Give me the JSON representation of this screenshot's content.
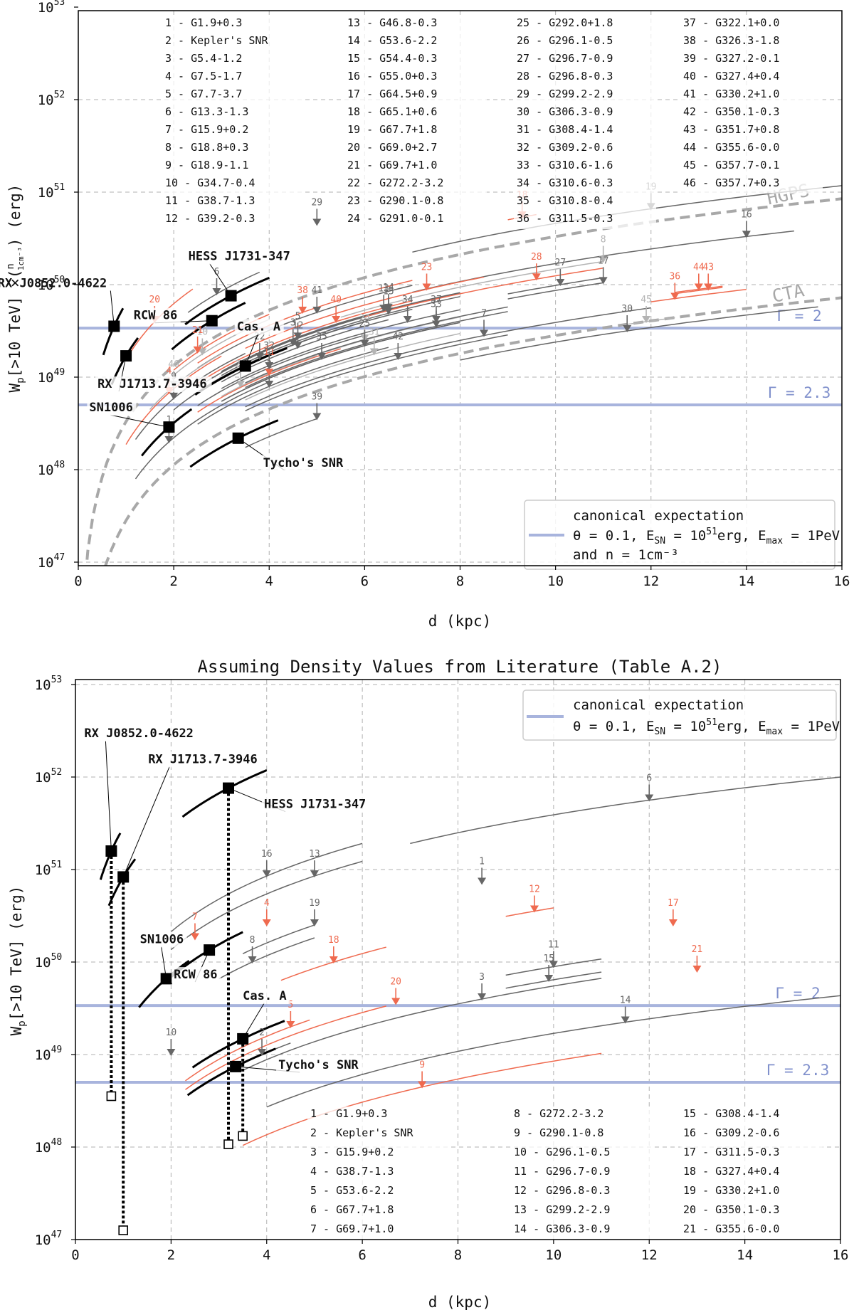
{
  "chart_data": [
    {
      "type": "line",
      "title": "",
      "xlabel": "d (kpc)",
      "ylabel": "W_p[>10 TeV] × (n/1cm⁻³) (erg)",
      "xlim": [
        0,
        16
      ],
      "ylim_log10": [
        46.9,
        53
      ],
      "x_ticks": [
        "0",
        "2",
        "4",
        "6",
        "8",
        "10",
        "12",
        "14",
        "16"
      ],
      "y_ticks": [
        {
          "base": "10",
          "exp": "47"
        },
        {
          "base": "10",
          "exp": "48"
        },
        {
          "base": "10",
          "exp": "49"
        },
        {
          "base": "10",
          "exp": "50"
        },
        {
          "base": "10",
          "exp": "51"
        },
        {
          "base": "10",
          "exp": "52"
        },
        {
          "base": "10",
          "exp": "53"
        }
      ],
      "hlines": [
        {
          "label": "Γ = 2",
          "value_log10": 49.53
        },
        {
          "label": "Γ = 2.3",
          "value_log10": 48.7
        }
      ],
      "sensitivity_curves": [
        {
          "label": "HGPS",
          "log10_at_1kpc": 48.52
        },
        {
          "label": "CTA",
          "log10_at_1kpc": 47.45
        }
      ],
      "legend": {
        "line1": "canonical expectation",
        "line2_a": "θ = 0.1, E",
        "line2_sn": "SN",
        "line2_b": " = 10",
        "line2_exp": "51",
        "line2_c": "erg, E",
        "line2_max": "max",
        "line2_d": " = 1PeV",
        "line3": "and n = 1cm⁻³",
        "placement": "bottom-right"
      },
      "detected": [
        {
          "name": "RX J0852.0-4622",
          "d": 0.75,
          "w_log10": 49.55
        },
        {
          "name": "RX J1713.7-3946",
          "d": 1.0,
          "w_log10": 49.23
        },
        {
          "name": "HESS J1731-347",
          "d": 3.2,
          "w_log10": 49.88
        },
        {
          "name": "RCW 86",
          "d": 2.8,
          "w_log10": 49.61
        },
        {
          "name": "Cas. A",
          "d": 3.5,
          "w_log10": 49.12
        },
        {
          "name": "SN1006",
          "d": 1.9,
          "w_log10": 48.46
        },
        {
          "name": "Tycho's SNR",
          "d": 3.35,
          "w_log10": 48.34
        }
      ],
      "upper_limits": [
        {
          "id": "1",
          "d": 1.9,
          "w_log10": 48.3,
          "color": "gray",
          "dmin": 1.2,
          "dmax": 4.0
        },
        {
          "id": "2",
          "d": 4.0,
          "w_log10": 48.9,
          "color": "gray",
          "dmin": 2.5,
          "dmax": 6.5
        },
        {
          "id": "3",
          "d": 4.5,
          "w_log10": 49.35,
          "color": "gray",
          "dmin": 2.0,
          "dmax": 7.0
        },
        {
          "id": "4",
          "d": 1.9,
          "w_log10": 48.83,
          "color": "red",
          "dmin": 1.0,
          "dmax": 3.0
        },
        {
          "id": "5",
          "d": 4.6,
          "w_log10": 49.42,
          "color": "gray",
          "dmin": 2.5,
          "dmax": 6.5
        },
        {
          "id": "6",
          "d": 2.9,
          "w_log10": 49.9,
          "color": "gray",
          "dmin": 2.3,
          "dmax": 3.8
        },
        {
          "id": "7",
          "d": 8.5,
          "w_log10": 49.45,
          "color": "gray",
          "dmin": 3.5,
          "dmax": 12.0
        },
        {
          "id": "8",
          "d": 11.0,
          "w_log10": 50.25,
          "color": "lightgray",
          "dmin": 5.5,
          "dmax": 11.0
        },
        {
          "id": "9",
          "d": 2.0,
          "w_log10": 48.77,
          "color": "gray",
          "dmin": 1.2,
          "dmax": 3.5
        },
        {
          "id": "10",
          "d": 2.6,
          "w_log10": 49.25,
          "color": "lightgray",
          "dmin": 2.0,
          "dmax": 4.0
        },
        {
          "id": "11",
          "d": 4.0,
          "w_log10": 49.03,
          "color": "red",
          "dmin": 2.5,
          "dmax": 5.5
        },
        {
          "id": "12",
          "d": 4.6,
          "w_log10": 49.32,
          "color": "gray",
          "dmin": 3.0,
          "dmax": 6.5
        },
        {
          "id": "13",
          "d": 6.4,
          "w_log10": 49.72,
          "color": "gray",
          "dmin": 3.0,
          "dmax": 8.0
        },
        {
          "id": "14",
          "d": 6.5,
          "w_log10": 49.73,
          "color": "gray",
          "dmin": 3.0,
          "dmax": 8.0
        },
        {
          "id": "15",
          "d": 6.5,
          "w_log10": 49.69,
          "color": "gray",
          "dmin": 3.0,
          "dmax": 8.0
        },
        {
          "id": "16",
          "d": 14.0,
          "w_log10": 50.52,
          "color": "gray",
          "dmin": 7.0,
          "dmax": 15.0
        },
        {
          "id": "17",
          "d": 11.0,
          "w_log10": 50.02,
          "color": "gray",
          "dmin": 9.0,
          "dmax": 11.0
        },
        {
          "id": "18",
          "d": 9.3,
          "w_log10": 50.73,
          "color": "red",
          "dmin": 9.0,
          "dmax": 9.6
        },
        {
          "id": "19",
          "d": 12.0,
          "w_log10": 50.82,
          "color": "gray",
          "dmin": 7.0,
          "dmax": 16.0
        },
        {
          "id": "20",
          "d": 1.6,
          "w_log10": 49.6,
          "color": "red",
          "dmin": 1.1,
          "dmax": 2.4
        },
        {
          "id": "21",
          "d": 2.5,
          "w_log10": 49.27,
          "color": "red",
          "dmin": 2.0,
          "dmax": 4.0
        },
        {
          "id": "22",
          "d": 3.8,
          "w_log10": 49.2,
          "color": "gray",
          "dmin": 2.3,
          "dmax": 6.0
        },
        {
          "id": "23",
          "d": 7.3,
          "w_log10": 49.95,
          "color": "red",
          "dmin": 3.5,
          "dmax": 8.5
        },
        {
          "id": "24",
          "d": 6.0,
          "w_log10": 49.4,
          "color": "lightgray",
          "dmin": 3.5,
          "dmax": 8.0
        },
        {
          "id": "25",
          "d": 6.0,
          "w_log10": 49.34,
          "color": "gray",
          "dmin": 3.0,
          "dmax": 8.0
        },
        {
          "id": "26",
          "d": 3.4,
          "w_log10": 48.9,
          "color": "lightgray",
          "dmin": 3.0,
          "dmax": 5.0
        },
        {
          "id": "27",
          "d": 10.1,
          "w_log10": 50.0,
          "color": "gray",
          "dmin": 9.0,
          "dmax": 11.0
        },
        {
          "id": "28",
          "d": 9.6,
          "w_log10": 50.06,
          "color": "red",
          "dmin": 6.0,
          "dmax": 11.0
        },
        {
          "id": "29",
          "d": 5.0,
          "w_log10": 50.65,
          "color": "gray",
          "dmin": 5.0,
          "dmax": 5.0
        },
        {
          "id": "30",
          "d": 11.5,
          "w_log10": 49.5,
          "color": "gray",
          "dmin": 8.0,
          "dmax": 15.5
        },
        {
          "id": "31",
          "d": 6.2,
          "w_log10": 49.25,
          "color": "lightgray",
          "dmin": 3.5,
          "dmax": 8.0
        },
        {
          "id": "32",
          "d": 4.0,
          "w_log10": 49.1,
          "color": "gray",
          "dmin": 2.5,
          "dmax": 6.0
        },
        {
          "id": "33",
          "d": 7.5,
          "w_log10": 49.55,
          "color": "gray",
          "dmin": 3.5,
          "dmax": 9.0
        },
        {
          "id": "34",
          "d": 6.9,
          "w_log10": 49.6,
          "color": "gray",
          "dmin": 3.0,
          "dmax": 8.0
        },
        {
          "id": "35",
          "d": 5.1,
          "w_log10": 49.2,
          "color": "gray",
          "dmin": 3.0,
          "dmax": 8.0
        },
        {
          "id": "36",
          "d": 12.5,
          "w_log10": 49.85,
          "color": "red",
          "dmin": 12.0,
          "dmax": 14.0
        },
        {
          "id": "37",
          "d": 7.5,
          "w_log10": 49.6,
          "color": "gray",
          "dmin": 3.5,
          "dmax": 9.0
        },
        {
          "id": "38",
          "d": 4.7,
          "w_log10": 49.7,
          "color": "red",
          "dmin": 2.5,
          "dmax": 7.0
        },
        {
          "id": "39",
          "d": 5.0,
          "w_log10": 48.55,
          "color": "gray",
          "dmin": 3.5,
          "dmax": 5.0
        },
        {
          "id": "40",
          "d": 5.4,
          "w_log10": 49.6,
          "color": "red",
          "dmin": 2.5,
          "dmax": 7.0
        },
        {
          "id": "41",
          "d": 5.0,
          "w_log10": 49.7,
          "color": "gray",
          "dmin": 2.5,
          "dmax": 7.0
        },
        {
          "id": "42",
          "d": 6.7,
          "w_log10": 49.2,
          "color": "gray",
          "dmin": 3.5,
          "dmax": 9.0
        },
        {
          "id": "43",
          "d": 13.2,
          "w_log10": 49.95,
          "color": "red",
          "dmin": 12.5,
          "dmax": 13.5
        },
        {
          "id": "44",
          "d": 13.0,
          "w_log10": 49.95,
          "color": "red",
          "dmin": 12.5,
          "dmax": 13.5
        },
        {
          "id": "45",
          "d": 11.9,
          "w_log10": 49.6,
          "color": "lightgray",
          "dmin": 11.5,
          "dmax": 12.5
        },
        {
          "id": "46",
          "d": 2.0,
          "w_log10": 48.9,
          "color": "lightgray",
          "dmin": 1.5,
          "dmax": 3.0
        }
      ],
      "table": [
        "1  - G1.9+0.3",
        "2  - Kepler's SNR",
        "3  - G5.4-1.2",
        "4  - G7.5-1.7",
        "5  - G7.7-3.7",
        "6  - G13.3-1.3",
        "7  - G15.9+0.2",
        "8  - G18.8+0.3",
        "9  - G18.9-1.1",
        "10 - G34.7-0.4",
        "11 - G38.7-1.3",
        "12 - G39.2-0.3",
        "13 - G46.8-0.3",
        "14 - G53.6-2.2",
        "15 - G54.4-0.3",
        "16 - G55.0+0.3",
        "17 - G64.5+0.9",
        "18 - G65.1+0.6",
        "19 - G67.7+1.8",
        "20 - G69.0+2.7",
        "21 - G69.7+1.0",
        "22 - G272.2-3.2",
        "23 - G290.1-0.8",
        "24 - G291.0-0.1",
        "25 - G292.0+1.8",
        "26 - G296.1-0.5",
        "27 - G296.7-0.9",
        "28 - G296.8-0.3",
        "29 - G299.2-2.9",
        "30 - G306.3-0.9",
        "31 - G308.4-1.4",
        "32 - G309.2-0.6",
        "33 - G310.6-1.6",
        "34 - G310.6-0.3",
        "35 - G310.8-0.4",
        "36 - G311.5-0.3",
        "37 - G322.1+0.0",
        "38 - G326.3-1.8",
        "39 - G327.2-0.1",
        "40 - G327.4+0.4",
        "41 - G330.2+1.0",
        "42 - G350.1-0.3",
        "43 - G351.7+0.8",
        "44 - G355.6-0.0",
        "45 - G357.7-0.1",
        "46 - G357.7+0.3"
      ],
      "table_rows": 12
    },
    {
      "type": "line",
      "title": "Assuming Density Values from Literature (Table A.2)",
      "xlabel": "d (kpc)",
      "ylabel": "W_p[>10 TeV] (erg)",
      "xlim": [
        0,
        16
      ],
      "ylim_log10": [
        46.9,
        53
      ],
      "x_ticks": [
        "0",
        "2",
        "4",
        "6",
        "8",
        "10",
        "12",
        "14",
        "16"
      ],
      "y_ticks": [
        {
          "base": "10",
          "exp": "47"
        },
        {
          "base": "10",
          "exp": "48"
        },
        {
          "base": "10",
          "exp": "49"
        },
        {
          "base": "10",
          "exp": "50"
        },
        {
          "base": "10",
          "exp": "51"
        },
        {
          "base": "10",
          "exp": "52"
        },
        {
          "base": "10",
          "exp": "53"
        }
      ],
      "hlines": [
        {
          "label": "Γ = 2",
          "value_log10": 49.53
        },
        {
          "label": "Γ = 2.3",
          "value_log10": 48.7
        }
      ],
      "legend": {
        "line1": "canonical expectation",
        "line2_a": "θ = 0.1, E",
        "line2_sn": "SN",
        "line2_b": " = 10",
        "line2_exp": "51",
        "line2_c": "erg, E",
        "line2_max": "max",
        "line2_d": " = 1PeV",
        "placement": "top-right"
      },
      "detected": [
        {
          "name": "RX J0852.0-4622",
          "d": 0.75,
          "w_log10": 51.2,
          "low_log10": 48.55
        },
        {
          "name": "RX J1713.7-3946",
          "d": 1.0,
          "w_log10": 50.92,
          "low_log10": 47.1
        },
        {
          "name": "HESS J1731-347",
          "d": 3.2,
          "w_log10": 51.88,
          "low_log10": 48.03
        },
        {
          "name": "SN1006",
          "d": 1.9,
          "w_log10": 49.82
        },
        {
          "name": "RCW 86",
          "d": 2.8,
          "w_log10": 50.13
        },
        {
          "name": "Cas. A",
          "d": 3.5,
          "w_log10": 49.17,
          "low_log10": 48.12
        },
        {
          "name": "Tycho's SNR",
          "d": 3.35,
          "w_log10": 48.87
        }
      ],
      "upper_limits": [
        {
          "id": "1",
          "d": 8.5,
          "w_log10": 50.85,
          "color": "gray",
          "dmin": 8.5,
          "dmax": 8.5
        },
        {
          "id": "2",
          "d": 3.9,
          "w_log10": 49.0,
          "color": "gray",
          "dmin": 3.5,
          "dmax": 4.5
        },
        {
          "id": "3",
          "d": 8.5,
          "w_log10": 49.6,
          "color": "gray",
          "dmin": 3.5,
          "dmax": 11.0
        },
        {
          "id": "4",
          "d": 4.0,
          "w_log10": 50.4,
          "color": "red",
          "dmin": 4.0,
          "dmax": 4.0
        },
        {
          "id": "5",
          "d": 4.5,
          "w_log10": 49.3,
          "color": "red",
          "dmin": 2.3,
          "dmax": 4.9
        },
        {
          "id": "6",
          "d": 12.0,
          "w_log10": 51.75,
          "color": "gray",
          "dmin": 7.0,
          "dmax": 16.0
        },
        {
          "id": "7",
          "d": 2.5,
          "w_log10": 50.25,
          "color": "red",
          "dmin": 2.5,
          "dmax": 2.5
        },
        {
          "id": "8",
          "d": 3.7,
          "w_log10": 50.0,
          "color": "gray",
          "dmin": 3.0,
          "dmax": 5.0
        },
        {
          "id": "9",
          "d": 7.25,
          "w_log10": 48.65,
          "color": "red",
          "dmin": 3.5,
          "dmax": 11.0
        },
        {
          "id": "10",
          "d": 2.0,
          "w_log10": 49.0,
          "color": "gray",
          "dmin": 2.0,
          "dmax": 2.0
        },
        {
          "id": "11",
          "d": 10.0,
          "w_log10": 49.95,
          "color": "gray",
          "dmin": 9.0,
          "dmax": 11.0
        },
        {
          "id": "12",
          "d": 9.6,
          "w_log10": 50.55,
          "color": "red",
          "dmin": 9.0,
          "dmax": 10.0
        },
        {
          "id": "13",
          "d": 5.0,
          "w_log10": 50.93,
          "color": "gray",
          "dmin": 2.0,
          "dmax": 6.0
        },
        {
          "id": "14",
          "d": 11.5,
          "w_log10": 49.35,
          "color": "gray",
          "dmin": 4.0,
          "dmax": 16.0
        },
        {
          "id": "15",
          "d": 9.9,
          "w_log10": 49.8,
          "color": "gray",
          "dmin": 9.0,
          "dmax": 11.0
        },
        {
          "id": "16",
          "d": 4.0,
          "w_log10": 50.93,
          "color": "gray",
          "dmin": 2.0,
          "dmax": 6.0
        },
        {
          "id": "17",
          "d": 12.5,
          "w_log10": 50.4,
          "color": "red",
          "dmin": 12.5,
          "dmax": 12.5
        },
        {
          "id": "18",
          "d": 5.4,
          "w_log10": 50.0,
          "color": "red",
          "dmin": 4.3,
          "dmax": 6.5
        },
        {
          "id": "19",
          "d": 5.0,
          "w_log10": 50.4,
          "color": "gray",
          "dmin": 3.5,
          "dmax": 5.0
        },
        {
          "id": "20",
          "d": 6.7,
          "w_log10": 49.55,
          "color": "red",
          "dmin": 2.3,
          "dmax": 6.5
        },
        {
          "id": "21",
          "d": 13.0,
          "w_log10": 49.9,
          "color": "red",
          "dmin": 13.0,
          "dmax": 13.0
        }
      ],
      "table": [
        "1  - G1.9+0.3",
        "2  - Kepler's SNR",
        "3  - G15.9+0.2",
        "4  - G38.7-1.3",
        "5  - G53.6-2.2",
        "6  - G67.7+1.8",
        "7  - G69.7+1.0",
        "8  - G272.2-3.2",
        "9  - G290.1-0.8",
        "10 - G296.1-0.5",
        "11 - G296.7-0.9",
        "12 - G296.8-0.3",
        "13 - G299.2-2.9",
        "14 - G306.3-0.9",
        "15 - G308.4-1.4",
        "16 - G309.2-0.6",
        "17 - G311.5-0.3",
        "18 - G327.4+0.4",
        "19 - G330.2+1.0",
        "20 - G350.1-0.3",
        "21 - G355.6-0.0"
      ],
      "table_rows": 7
    }
  ],
  "colors": {
    "gray": "#666666",
    "lightgray": "#b4b4b4",
    "red": "#ef6a4f",
    "blue": "#a8b4dd",
    "black": "#000000"
  }
}
